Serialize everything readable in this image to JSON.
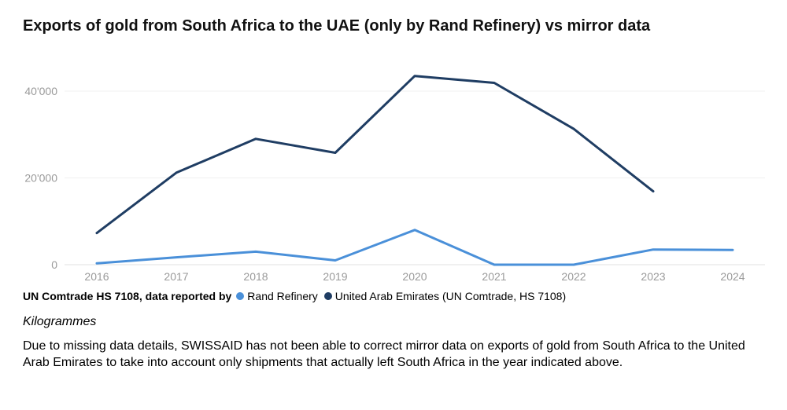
{
  "title": "Exports of gold from South Africa to the UAE (only by Rand Refinery) vs mirror data",
  "legend": {
    "title": "UN Comtrade HS 7108, data reported by",
    "items": [
      {
        "label": "Rand Refinery",
        "color": "#4a90d9"
      },
      {
        "label": "United Arab Emirates (UN Comtrade, HS 7108)",
        "color": "#1f3d63"
      }
    ]
  },
  "unit": "Kilogrammes",
  "note": "Due to missing data details, SWISSAID has not been able to correct mirror data on exports of gold from South Africa to the United Arab Emirates to take into account only shipments that actually left South Africa in the year indicated above.",
  "chart_data": {
    "type": "line",
    "title": "Exports of gold from South Africa to the UAE (only by Rand Refinery) vs mirror data",
    "x": [
      "2016",
      "2017",
      "2018",
      "2019",
      "2020",
      "2021",
      "2022",
      "2023",
      "2024"
    ],
    "y_ticks": [
      0,
      20000,
      40000
    ],
    "y_tick_labels": [
      "0",
      "20'000",
      "40'000"
    ],
    "ylim": [
      0,
      44000
    ],
    "grid": true,
    "legend_position": "bottom-left",
    "series": [
      {
        "name": "Rand Refinery",
        "color": "#4a90d9",
        "values": [
          300,
          1700,
          3000,
          1000,
          8000,
          0,
          0,
          3500,
          3400
        ]
      },
      {
        "name": "United Arab Emirates (UN Comtrade, HS 7108)",
        "color": "#1f3d63",
        "values": [
          7300,
          21200,
          29000,
          25800,
          43500,
          41900,
          31300,
          16900,
          null
        ]
      }
    ]
  }
}
